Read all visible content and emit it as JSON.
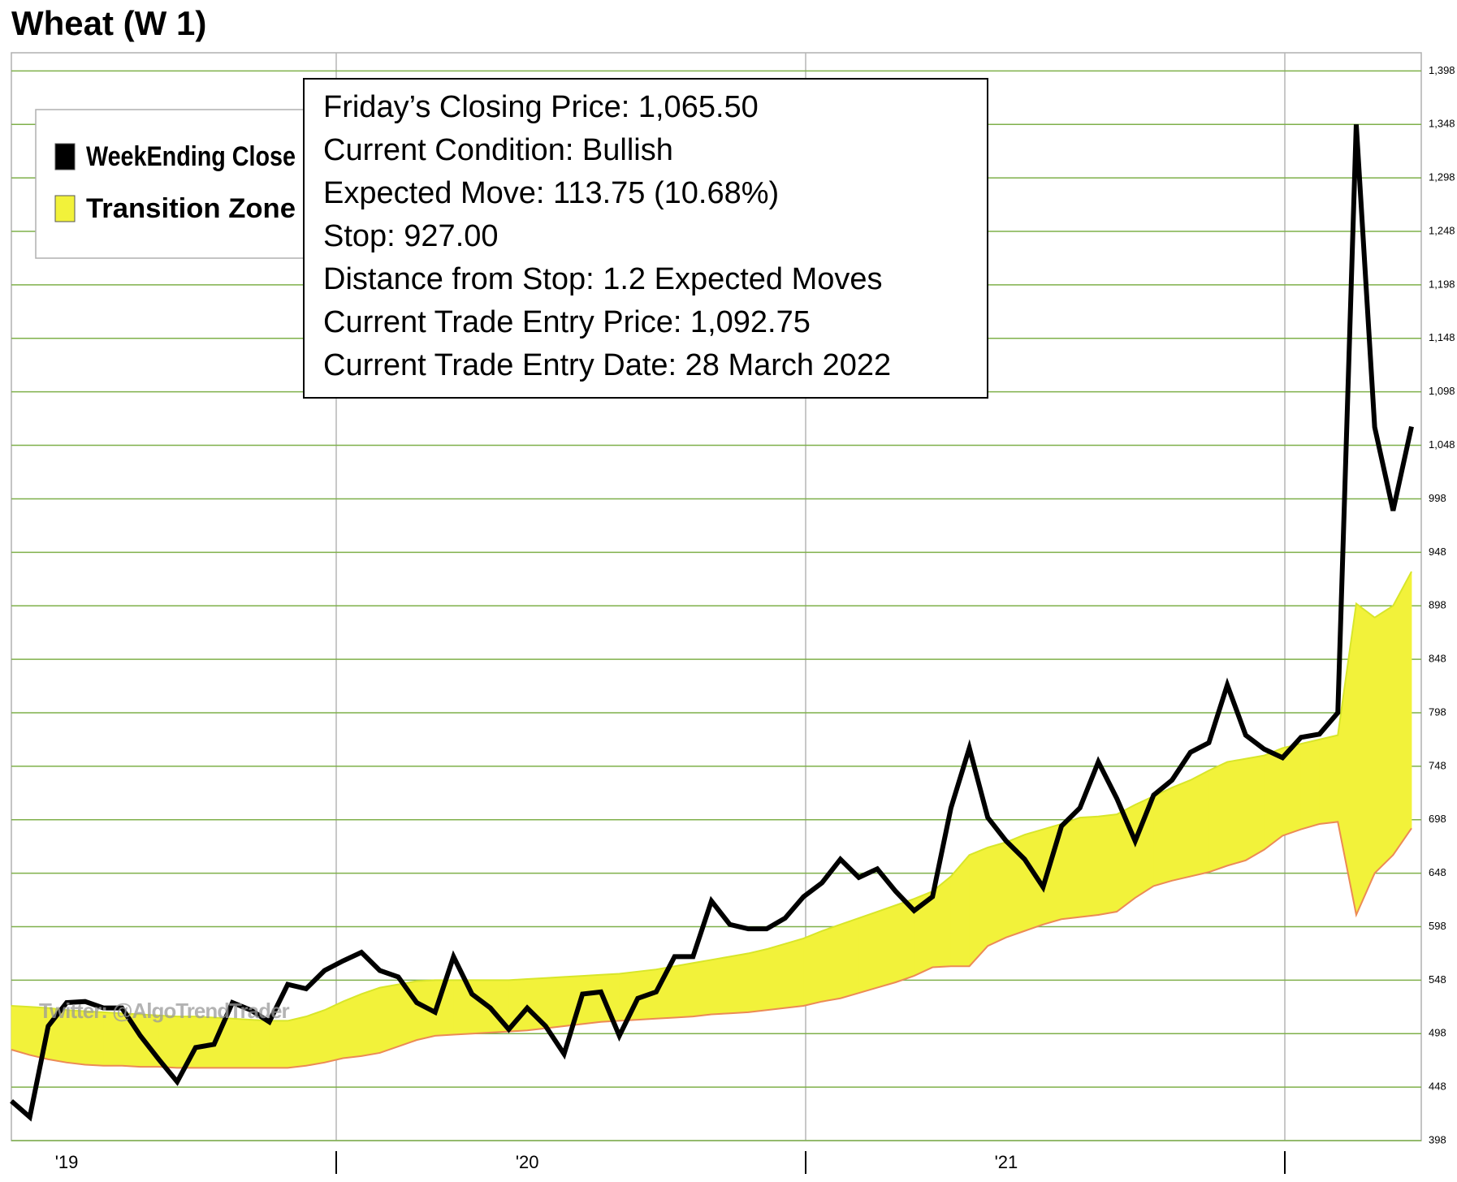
{
  "chart_data": {
    "type": "line",
    "title": "Wheat (W 1)",
    "categories": [
      null,
      null,
      null,
      "'19",
      null,
      null,
      null,
      null,
      null,
      null,
      null,
      null,
      null,
      null,
      null,
      null,
      null,
      null,
      null,
      null,
      null,
      null,
      null,
      null,
      null,
      null,
      null,
      null,
      "'20",
      null,
      null,
      null,
      null,
      null,
      null,
      null,
      null,
      null,
      null,
      null,
      null,
      null,
      null,
      null,
      null,
      null,
      null,
      null,
      null,
      null,
      null,
      null,
      null,
      null,
      "'21",
      null,
      null,
      null,
      null,
      null,
      null,
      null,
      null,
      null,
      null,
      null,
      null,
      null,
      null,
      null,
      null,
      null,
      null,
      null,
      null,
      null,
      null
    ],
    "series": [
      {
        "name": "WeekEnding Close",
        "color": "#000000",
        "values": [
          435,
          420,
          505,
          527,
          528,
          522,
          522,
          496,
          474,
          453,
          485,
          488,
          527,
          520,
          509,
          544,
          540,
          557,
          566,
          574,
          557,
          551,
          527,
          518,
          570,
          535,
          522,
          502,
          522,
          505,
          479,
          535,
          537,
          496,
          531,
          537,
          570,
          570,
          622,
          600,
          596,
          596,
          606,
          626,
          639,
          661,
          644,
          652,
          631,
          613,
          626,
          709,
          765,
          700,
          678,
          661,
          635,
          692,
          709,
          752,
          718,
          678,
          721,
          735,
          761,
          770,
          824,
          777,
          764,
          756,
          775,
          778,
          798,
          1348,
          1065,
          987,
          1065.5
        ]
      },
      {
        "name": "Transition Zone",
        "color": "#f2f23a",
        "upper_color": "#d8e62a",
        "lower_color": "#ec8a55",
        "upper": [
          524,
          523,
          522,
          520,
          519,
          518,
          517,
          516,
          515,
          514,
          514,
          513,
          512,
          511,
          510,
          510,
          514,
          520,
          528,
          535,
          541,
          544,
          547,
          548,
          548,
          548,
          548,
          548,
          549,
          550,
          551,
          552,
          553,
          554,
          556,
          558,
          561,
          564,
          567,
          570,
          573,
          577,
          582,
          587,
          594,
          600,
          606,
          612,
          618,
          624,
          631,
          645,
          665,
          672,
          677,
          684,
          689,
          694,
          700,
          701,
          703,
          712,
          720,
          728,
          735,
          744,
          752,
          755,
          758,
          765,
          769,
          773,
          777,
          900,
          887,
          898,
          930
        ],
        "lower": [
          483,
          478,
          474,
          471,
          469,
          468,
          468,
          467,
          467,
          466,
          466,
          466,
          466,
          466,
          466,
          466,
          468,
          471,
          475,
          477,
          480,
          486,
          492,
          496,
          497,
          498,
          499,
          500,
          501,
          503,
          505,
          507,
          509,
          510,
          511,
          512,
          513,
          514,
          516,
          517,
          518,
          520,
          522,
          524,
          528,
          531,
          536,
          541,
          546,
          552,
          560,
          561,
          561,
          580,
          588,
          594,
          600,
          605,
          607,
          609,
          612,
          625,
          636,
          641,
          645,
          649,
          655,
          660,
          670,
          683,
          689,
          694,
          696,
          609,
          648,
          665,
          690
        ]
      }
    ],
    "ylim": [
      398,
      1415
    ],
    "yticks": [
      398,
      448,
      498,
      548,
      598,
      648,
      698,
      748,
      798,
      848,
      898,
      948,
      998,
      {
        "value": 1048,
        "label": "1,048"
      },
      {
        "value": 1098,
        "label": "1,098"
      },
      {
        "value": 1148,
        "label": "1,148"
      },
      {
        "value": 1198,
        "label": "1,198"
      },
      {
        "value": 1248,
        "label": "1,248"
      },
      {
        "value": 1298,
        "label": "1,298"
      },
      {
        "value": 1348,
        "label": "1,348"
      },
      {
        "value": 1398,
        "label": "1,398"
      }
    ],
    "grid": true,
    "grid_color": "#7fb04a",
    "legend": "upper left",
    "info_box": [
      "Friday’s Closing Price: 1,065.50",
      "Current Condition: Bullish",
      "Expected Move: 113.75 (10.68%)",
      "Stop: 927.00",
      "Distance from Stop: 1.2 Expected Moves",
      "Current Trade Entry Price: 1,092.75",
      "Current Trade Entry Date: 28 March 2022"
    ],
    "watermark": "Twitter: @AlgoTrendTrader"
  }
}
